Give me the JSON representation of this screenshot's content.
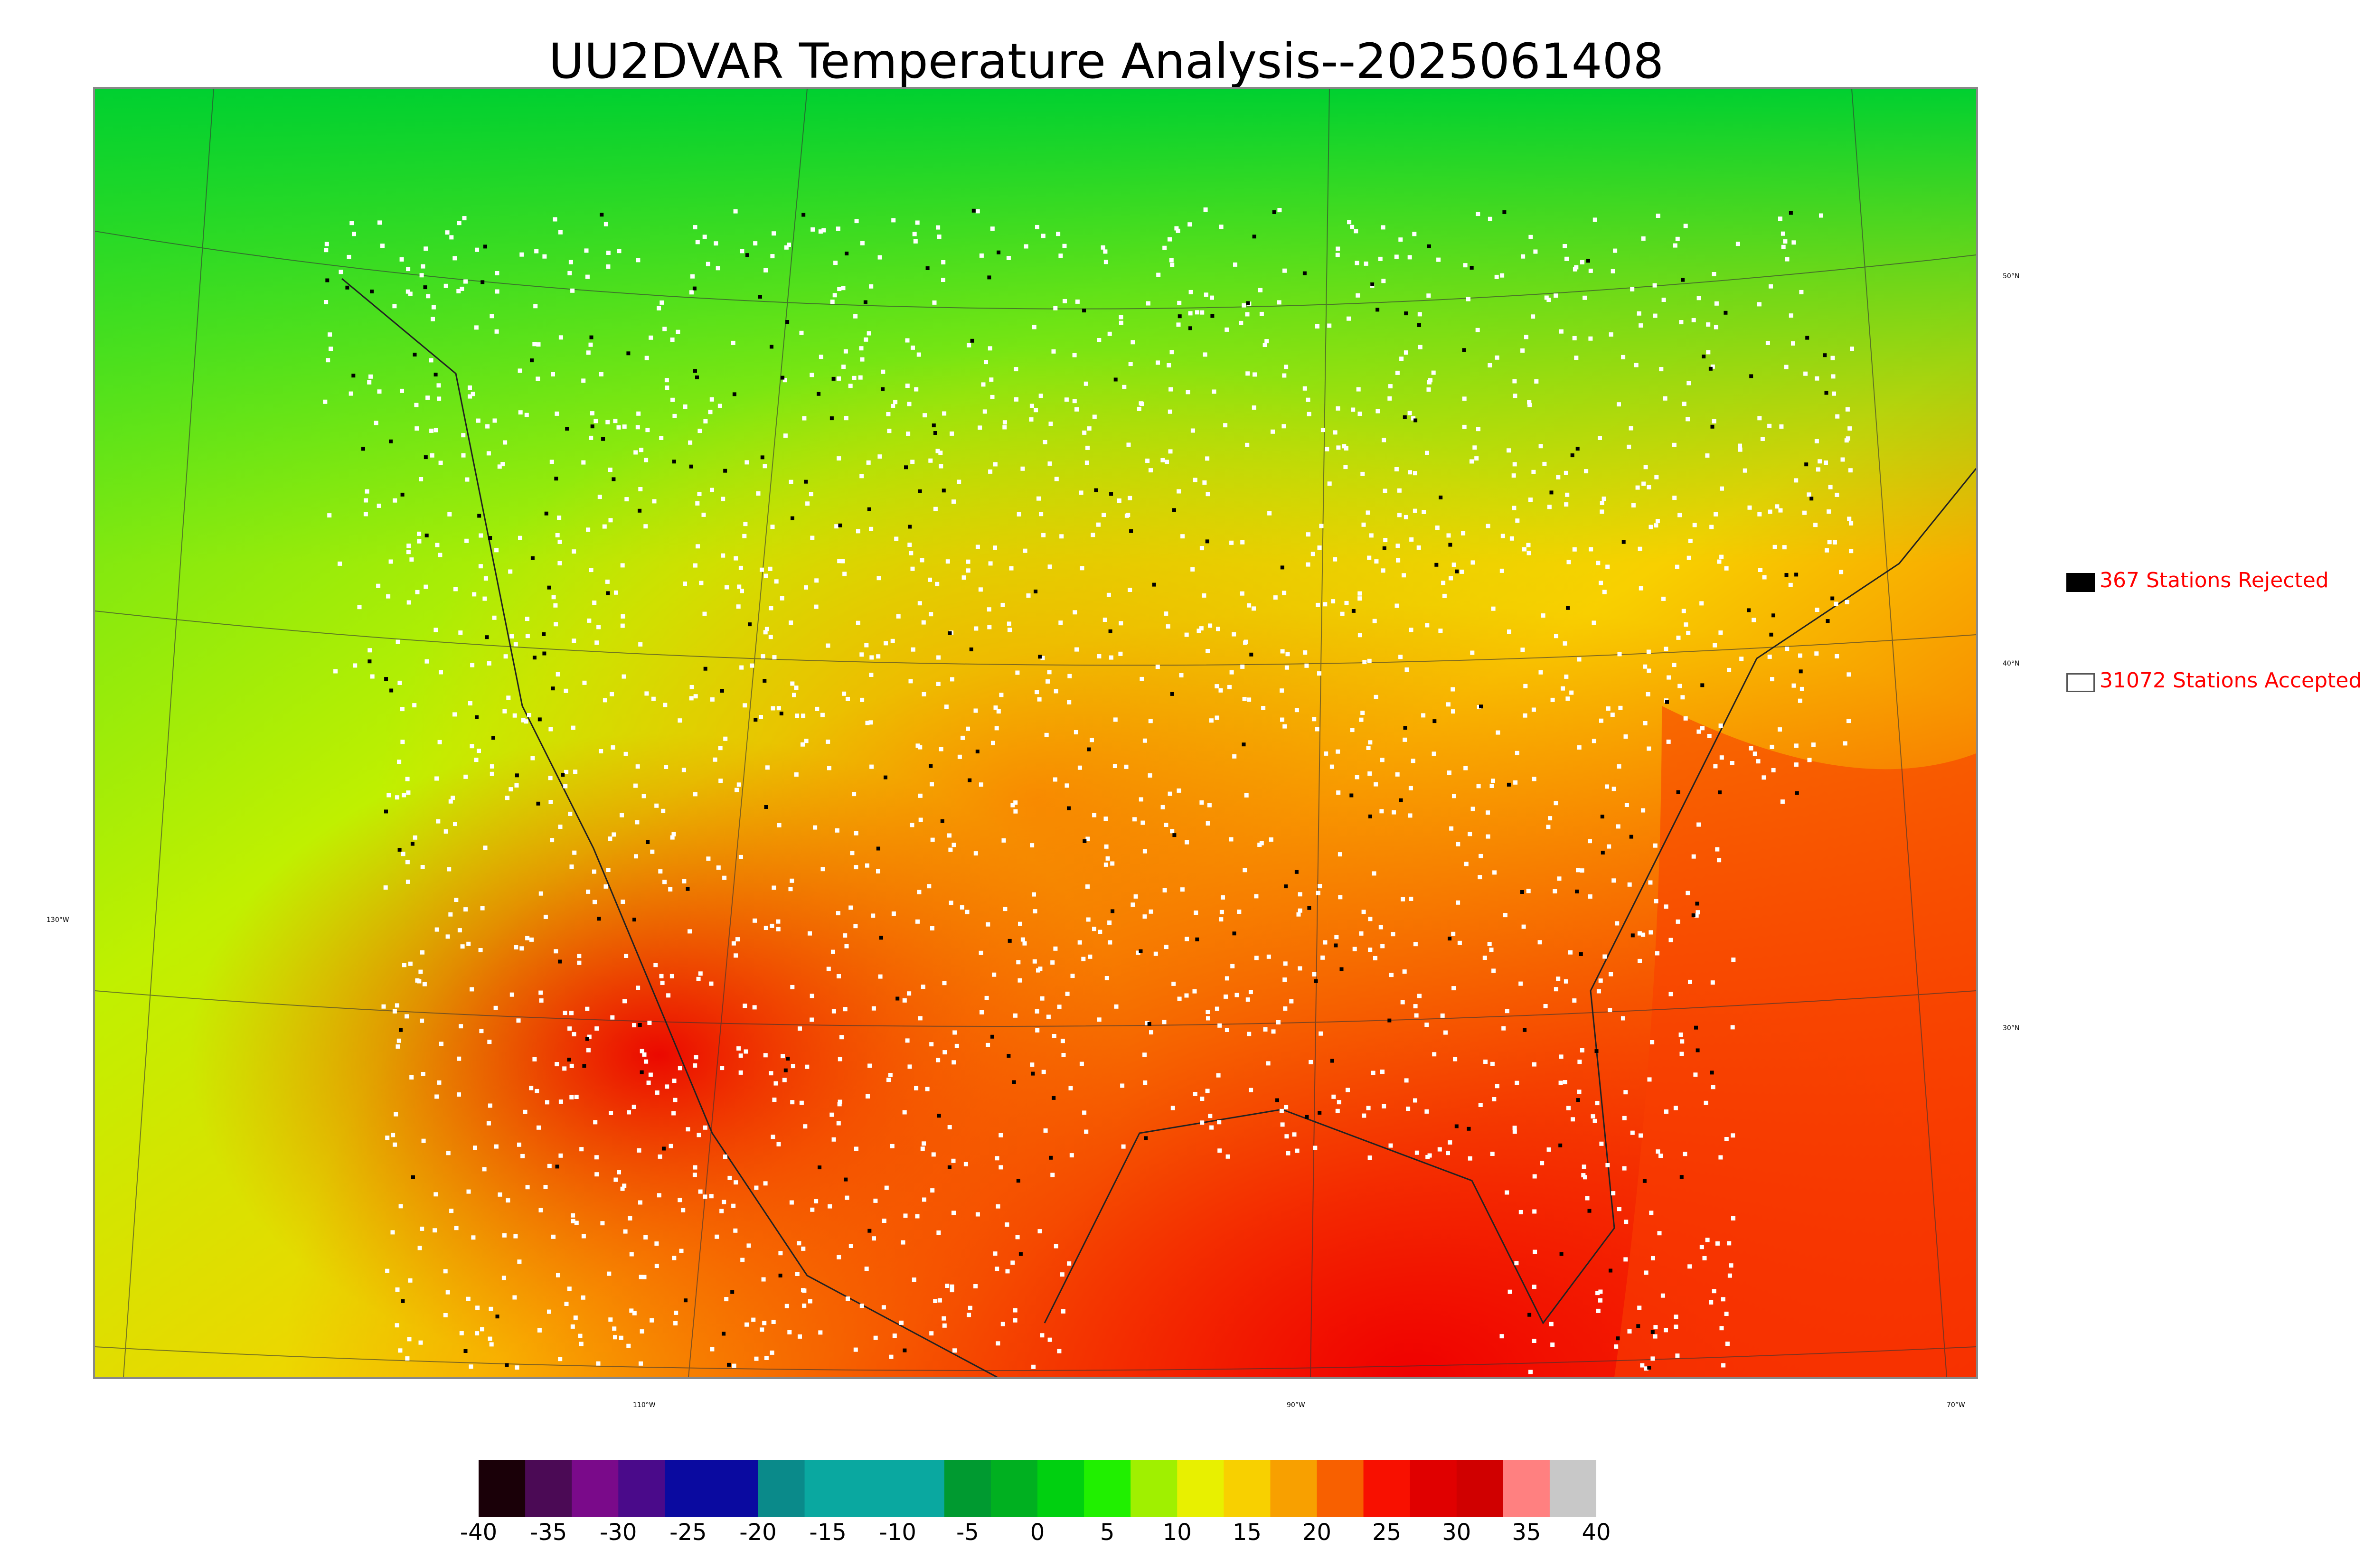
{
  "title": "UU2DVAR Temperature Analysis--2025061408",
  "map": {
    "lon_labels": [
      "130°W",
      "110°W",
      "90°W",
      "70°W"
    ],
    "lat_labels": [
      "50°N",
      "40°N",
      "30°N"
    ]
  },
  "legend": {
    "rejected": {
      "label": "367 Stations Rejected",
      "color": "#000000"
    },
    "accepted": {
      "label": "31072 Stations Accepted",
      "color": "#ffffff"
    }
  },
  "colorbar": {
    "ticks": [
      "-40",
      "-35",
      "-30",
      "-25",
      "-20",
      "-15",
      "-10",
      "-5",
      "0",
      "5",
      "10",
      "15",
      "20",
      "25",
      "30",
      "35",
      "40"
    ],
    "colors": [
      "#1a0008",
      "#4b0a55",
      "#7a0a8a",
      "#4a0a8a",
      "#0a0aa0",
      "#0a0aa0",
      "#0a8a8a",
      "#0aa8a0",
      "#0aa8a0",
      "#0aa8a0",
      "#009a30",
      "#00b020",
      "#00d010",
      "#20f000",
      "#a0f000",
      "#e8f000",
      "#f8d000",
      "#f8a000",
      "#f86000",
      "#f81000",
      "#e00000",
      "#d00000",
      "#ff8080",
      "#c8c8c8"
    ]
  }
}
